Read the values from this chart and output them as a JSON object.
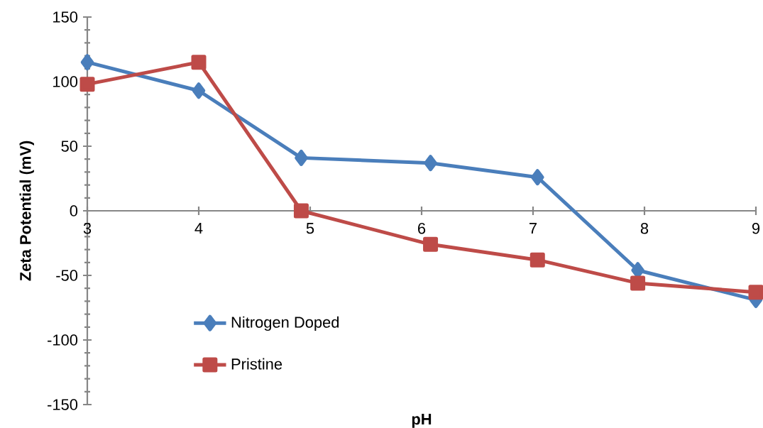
{
  "chart_data": {
    "type": "line",
    "xlabel": "pH",
    "ylabel": "Zeta Potential (mV)",
    "xlim": [
      3,
      9
    ],
    "xticks": [
      3,
      4,
      5,
      6,
      7,
      8,
      9
    ],
    "ylim": [
      -150,
      150
    ],
    "yticks": [
      -150,
      -100,
      -50,
      0,
      50,
      100,
      150
    ],
    "grid": false,
    "legend": "bottom left",
    "line_style": "solid",
    "series": [
      {
        "name": "Nitrogen Doped",
        "color": "#4a7ebb",
        "marker": "diamond",
        "x": [
          3,
          4,
          4.92,
          6.08,
          7.04,
          7.94,
          9
        ],
        "values": [
          115,
          93,
          41,
          37,
          26,
          -46,
          -69
        ]
      },
      {
        "name": "Pristine",
        "color": "#be4b48",
        "marker": "square",
        "x": [
          3,
          4,
          4.92,
          6.08,
          7.04,
          7.94,
          9
        ],
        "values": [
          98,
          115,
          0,
          -26,
          -38,
          -56,
          -63
        ]
      }
    ]
  }
}
